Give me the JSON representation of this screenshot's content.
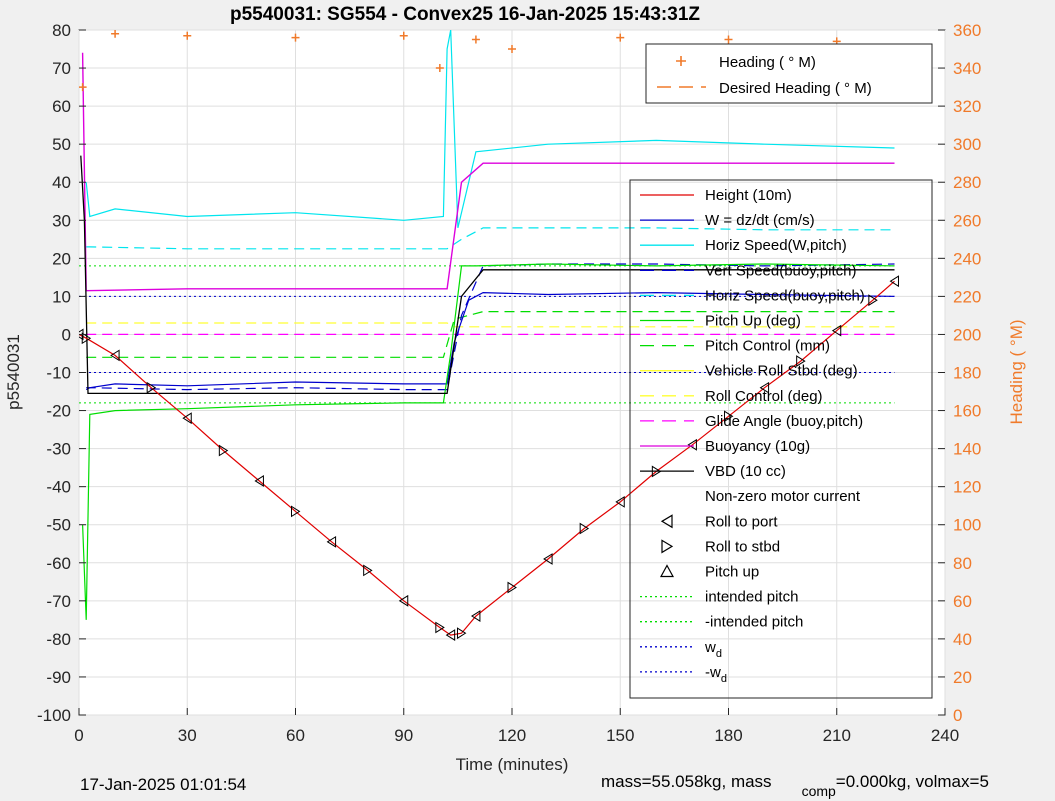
{
  "chart_data": {
    "type": "line",
    "title": "p5540031: SG554 - Convex25 16-Jan-2025 15:43:31Z",
    "xlabel": "Time (minutes)",
    "ylabel": "p5540031",
    "ylabel_right": "Heading (  °M)",
    "xlim": [
      0,
      240
    ],
    "ylim": [
      -100,
      80
    ],
    "ylim_right": [
      0,
      360
    ],
    "x_ticks": [
      "0",
      "30",
      "60",
      "90",
      "120",
      "150",
      "180",
      "210",
      "240"
    ],
    "y_ticks": [
      "80",
      "70",
      "60",
      "50",
      "40",
      "30",
      "20",
      "10",
      "0",
      "-10",
      "-20",
      "-30",
      "-40",
      "-50",
      "-60",
      "-70",
      "-80",
      "-90",
      "-100"
    ],
    "y_ticks_right": [
      "360",
      "340",
      "320",
      "300",
      "280",
      "260",
      "240",
      "220",
      "200",
      "180",
      "160",
      "140",
      "120",
      "100",
      "80",
      "60",
      "40",
      "20",
      "0"
    ],
    "grid": true,
    "legend_heading_position": "top-right",
    "legend_main_position": "right",
    "legend_heading": [
      {
        "name": "Heading (  ° M)",
        "style": "marker-plus",
        "color": "#f07a2a"
      },
      {
        "name": "Desired Heading (    ° M)",
        "style": "dashed",
        "color": "#f07a2a"
      }
    ],
    "legend_main": [
      {
        "name": "Height (10m)",
        "style": "solid",
        "color": "#e00000"
      },
      {
        "name": "W = dz/dt (cm/s)",
        "style": "solid",
        "color": "#0000cc"
      },
      {
        "name": "Horiz Speed(W,pitch)",
        "style": "solid",
        "color": "#00e5ee"
      },
      {
        "name": "Vert Speed(buoy,pitch)",
        "style": "dashed",
        "color": "#0000cc"
      },
      {
        "name": "Horiz Speed(buoy,pitch)",
        "style": "dashed",
        "color": "#00e5ee"
      },
      {
        "name": "Pitch Up (deg)",
        "style": "solid",
        "color": "#00dd00"
      },
      {
        "name": "Pitch Control (mm)",
        "style": "dashed",
        "color": "#00dd00"
      },
      {
        "name": "Vehicle Roll Stbd (deg)",
        "style": "solid",
        "color": "#ffff33"
      },
      {
        "name": "Roll Control (deg)",
        "style": "dashed",
        "color": "#ffff33"
      },
      {
        "name": "Glide Angle (buoy,pitch)",
        "style": "dashed",
        "color": "#ff00ff"
      },
      {
        "name": "Buoyancy (10g)",
        "style": "solid",
        "color": "#dd00dd"
      },
      {
        "name": "VBD (10 cc)",
        "style": "solid",
        "color": "#000000"
      },
      {
        "name": "Non-zero motor current",
        "style": "none",
        "color": "#000000"
      },
      {
        "name": "Roll to port",
        "style": "marker-left",
        "color": "#000000"
      },
      {
        "name": "Roll to stbd",
        "style": "marker-right",
        "color": "#000000"
      },
      {
        "name": "Pitch up",
        "style": "marker-up",
        "color": "#000000"
      },
      {
        "name": "intended pitch",
        "style": "dotted",
        "color": "#00dd00"
      },
      {
        "name": "-intended pitch",
        "style": "dotted",
        "color": "#00dd00"
      },
      {
        "name": "w",
        "sub": "d",
        "style": "dotted",
        "color": "#0000cc"
      },
      {
        "name": "-w",
        "sub": "d",
        "style": "dotted",
        "color": "#0000cc"
      }
    ],
    "series": [
      {
        "key": "height",
        "x": [
          0,
          2,
          10,
          20,
          30,
          40,
          50,
          60,
          70,
          80,
          90,
          100,
          103,
          106,
          110,
          120,
          130,
          140,
          150,
          160,
          170,
          180,
          190,
          200,
          210,
          220,
          226
        ],
        "y": [
          0,
          -1,
          -5.5,
          -14,
          -22,
          -30.5,
          -38.5,
          -46.5,
          -54.5,
          -62,
          -70,
          -77,
          -79,
          -78.5,
          -74,
          -66.5,
          -59,
          -51,
          -44,
          -36,
          -29,
          -21.5,
          -14,
          -7,
          1,
          9,
          14
        ]
      },
      {
        "key": "w_dzdt",
        "x": [
          2,
          3,
          10,
          30,
          60,
          90,
          102,
          104,
          108,
          112,
          130,
          160,
          190,
          226
        ],
        "y": [
          -14,
          -14,
          -13,
          -13.5,
          -12.5,
          -13,
          -13,
          -2,
          9,
          11,
          10.5,
          11,
          10.5,
          10
        ]
      },
      {
        "key": "horiz_speed_w",
        "x": [
          2,
          3,
          10,
          30,
          60,
          90,
          101,
          102,
          103,
          105,
          110,
          130,
          160,
          190,
          226
        ],
        "y": [
          40,
          31,
          33,
          31,
          32,
          30,
          31,
          75,
          80,
          28,
          48,
          50,
          51,
          50,
          49
        ]
      },
      {
        "key": "vert_speed_buoy",
        "x": [
          2,
          3,
          30,
          60,
          90,
          102,
          106,
          112,
          130,
          160,
          190,
          226
        ],
        "y": [
          -14.5,
          -14,
          -14.5,
          -14,
          -14.5,
          -14.5,
          5,
          18,
          18.5,
          18.5,
          18,
          18.5
        ]
      },
      {
        "key": "horiz_speed_buoy",
        "x": [
          2,
          3,
          30,
          60,
          90,
          102,
          106,
          112,
          130,
          160,
          190,
          226
        ],
        "y": [
          23,
          23,
          22.5,
          22.5,
          22.5,
          22.5,
          25,
          28,
          28,
          28,
          27.5,
          27.5
        ]
      },
      {
        "key": "pitch_up",
        "x": [
          1,
          2,
          3,
          10,
          30,
          60,
          90,
          101,
          103,
          106,
          110,
          130,
          160,
          190,
          226
        ],
        "y": [
          -50,
          -75,
          -21,
          -20,
          -19.5,
          -18.5,
          -18,
          -18,
          -5,
          18,
          18,
          18.5,
          18,
          18.5,
          18
        ]
      },
      {
        "key": "pitch_control",
        "x": [
          2,
          30,
          60,
          90,
          101,
          104,
          112,
          130,
          160,
          190,
          226
        ],
        "y": [
          -6,
          -6,
          -6,
          -6,
          -6,
          4,
          6,
          6,
          6,
          6,
          6
        ]
      },
      {
        "key": "roll_control",
        "x": [
          2,
          30,
          60,
          90,
          102,
          104,
          130,
          160,
          190,
          226
        ],
        "y": [
          3,
          3,
          3,
          3,
          3,
          2,
          2,
          2,
          2,
          2
        ]
      },
      {
        "key": "glide_angle",
        "x": [
          2,
          30,
          60,
          90,
          102,
          106,
          130,
          160,
          190,
          226
        ],
        "y": [
          0,
          0,
          0,
          0,
          0,
          0,
          0,
          0,
          0,
          0
        ]
      },
      {
        "key": "buoyancy",
        "x": [
          1,
          2,
          30,
          60,
          90,
          102,
          106,
          112,
          130,
          160,
          190,
          226
        ],
        "y": [
          74,
          11.5,
          12,
          12,
          12,
          12,
          40,
          45,
          45,
          45,
          45,
          45
        ]
      },
      {
        "key": "vbd",
        "x": [
          0.5,
          1.5,
          2.5,
          30,
          60,
          90,
          102,
          106,
          112,
          130,
          160,
          190,
          226
        ],
        "y": [
          47,
          30,
          -15.5,
          -15.5,
          -15.5,
          -15.5,
          -15.5,
          10,
          17,
          17,
          17,
          17,
          17
        ]
      },
      {
        "key": "heading",
        "x": [
          1,
          10,
          30,
          60,
          90,
          100,
          110,
          120,
          150,
          180,
          210,
          225
        ],
        "y": [
          330,
          358,
          357,
          356,
          357,
          340,
          355,
          350,
          356,
          355,
          354,
          350
        ]
      },
      {
        "key": "intended_pitch",
        "x": [
          0,
          226
        ],
        "y": [
          18,
          18
        ]
      },
      {
        "key": "neg_intended_pitch",
        "x": [
          0,
          226
        ],
        "y": [
          -18,
          -18
        ]
      },
      {
        "key": "wd",
        "x": [
          0,
          226
        ],
        "y": [
          10,
          10
        ]
      },
      {
        "key": "neg_wd",
        "x": [
          0,
          226
        ],
        "y": [
          -10,
          -10
        ]
      }
    ]
  },
  "footer": {
    "date": "17-Jan-2025 01:01:54",
    "mass_text": "mass=55.058kg, mass",
    "comp_sub": "comp",
    "comp_text": "=0.000kg, volmax=5"
  }
}
